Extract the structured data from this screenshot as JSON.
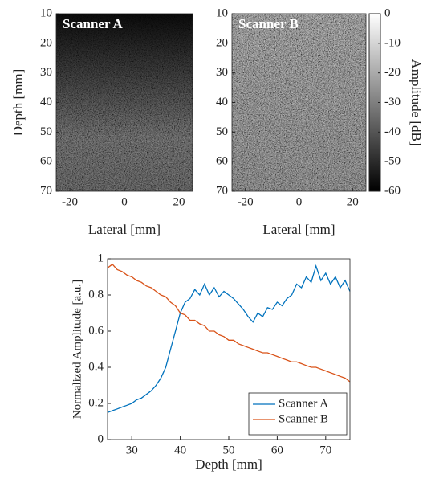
{
  "chart_data": [
    {
      "type": "image",
      "title": "Scanner A",
      "xlabel": "Lateral [mm]",
      "ylabel": "Depth [mm]",
      "xlim": [
        -25,
        25
      ],
      "xticks": [
        -20,
        0,
        20
      ],
      "ylim": [
        70,
        10
      ],
      "yticks": [
        10,
        20,
        30,
        40,
        50,
        60,
        70
      ]
    },
    {
      "type": "image",
      "title": "Scanner B",
      "xlabel": "Lateral [mm]",
      "xlim": [
        -25,
        25
      ],
      "xticks": [
        -20,
        0,
        20
      ],
      "ylim": [
        70,
        10
      ],
      "yticks": [
        10,
        20,
        30,
        40,
        50,
        60,
        70
      ]
    },
    {
      "type": "colorbar",
      "ylabel": "Amplitude [dB]",
      "ylim": [
        -60,
        0
      ],
      "yticks": [
        0,
        -10,
        -20,
        -30,
        -40,
        -50,
        -60
      ]
    },
    {
      "type": "line",
      "xlabel": "Depth [mm]",
      "ylabel": "Normalized Amplitude [a.u.]",
      "xlim": [
        25,
        75
      ],
      "xticks": [
        30,
        40,
        50,
        60,
        70
      ],
      "ylim": [
        0,
        1
      ],
      "yticks": [
        0,
        0.2,
        0.4,
        0.6,
        0.8,
        1
      ],
      "legend": "lower right",
      "x": [
        25,
        26,
        27,
        28,
        29,
        30,
        31,
        32,
        33,
        34,
        35,
        36,
        37,
        38,
        39,
        40,
        41,
        42,
        43,
        44,
        45,
        46,
        47,
        48,
        49,
        50,
        51,
        52,
        53,
        54,
        55,
        56,
        57,
        58,
        59,
        60,
        61,
        62,
        63,
        64,
        65,
        66,
        67,
        68,
        69,
        70,
        71,
        72,
        73,
        74,
        75
      ],
      "series": [
        {
          "name": "Scanner A",
          "color": "#0072bd",
          "values": [
            0.15,
            0.16,
            0.17,
            0.18,
            0.19,
            0.2,
            0.22,
            0.23,
            0.25,
            0.27,
            0.3,
            0.34,
            0.4,
            0.5,
            0.6,
            0.7,
            0.76,
            0.78,
            0.83,
            0.8,
            0.86,
            0.8,
            0.84,
            0.79,
            0.82,
            0.8,
            0.78,
            0.75,
            0.72,
            0.68,
            0.65,
            0.7,
            0.68,
            0.73,
            0.72,
            0.76,
            0.74,
            0.78,
            0.8,
            0.86,
            0.84,
            0.9,
            0.87,
            0.96,
            0.88,
            0.92,
            0.86,
            0.9,
            0.84,
            0.88,
            0.82
          ]
        },
        {
          "name": "Scanner B",
          "color": "#d95319",
          "values": [
            0.95,
            0.97,
            0.94,
            0.93,
            0.91,
            0.9,
            0.88,
            0.87,
            0.85,
            0.84,
            0.82,
            0.8,
            0.79,
            0.76,
            0.74,
            0.7,
            0.69,
            0.66,
            0.66,
            0.64,
            0.63,
            0.6,
            0.6,
            0.58,
            0.57,
            0.55,
            0.55,
            0.53,
            0.52,
            0.51,
            0.5,
            0.49,
            0.48,
            0.48,
            0.47,
            0.46,
            0.45,
            0.44,
            0.43,
            0.43,
            0.42,
            0.41,
            0.4,
            0.4,
            0.39,
            0.38,
            0.37,
            0.36,
            0.35,
            0.34,
            0.32
          ]
        }
      ]
    }
  ]
}
